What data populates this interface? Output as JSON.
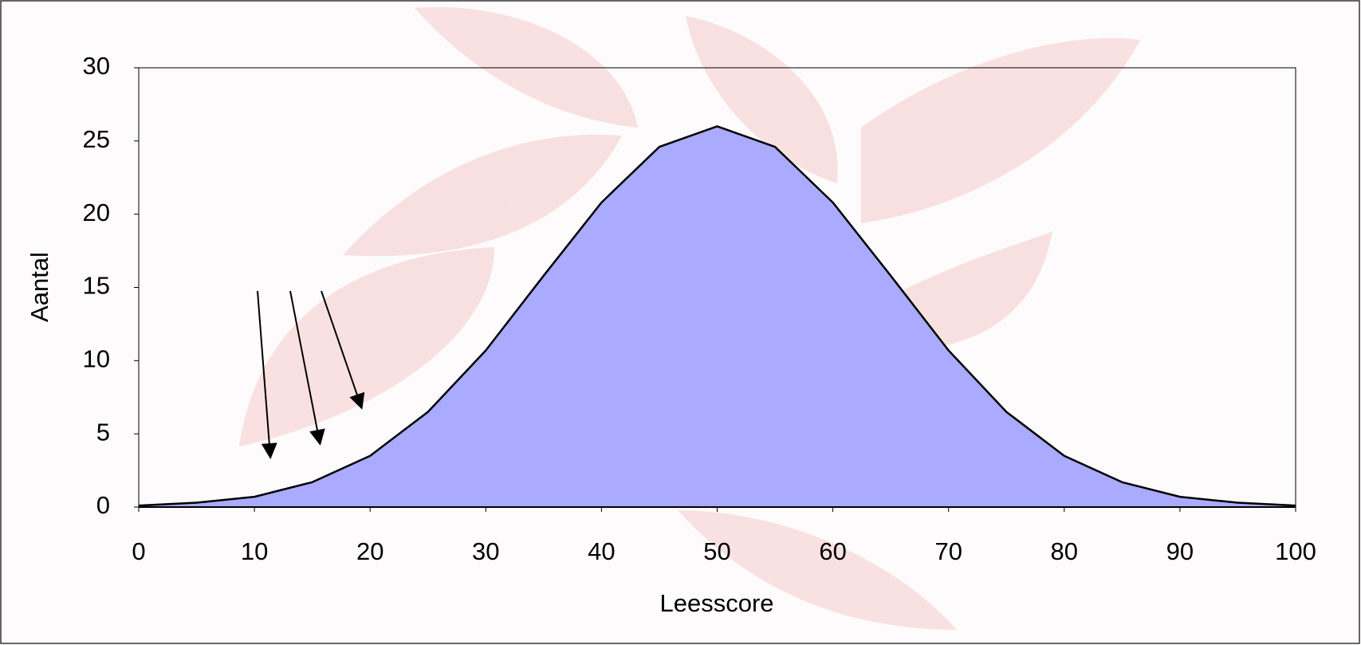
{
  "chart_data": {
    "type": "area",
    "x": [
      0,
      5,
      10,
      15,
      20,
      25,
      30,
      35,
      40,
      45,
      50,
      55,
      60,
      65,
      70,
      75,
      80,
      85,
      90,
      95,
      100
    ],
    "values": [
      0.1,
      0.3,
      0.7,
      1.7,
      3.5,
      6.5,
      10.7,
      15.8,
      20.8,
      24.6,
      26,
      24.6,
      20.8,
      15.8,
      10.7,
      6.5,
      3.5,
      1.7,
      0.7,
      0.3,
      0.1
    ],
    "color": "#aaaaff",
    "xlabel": "Leesscore",
    "ylabel": "Aantal",
    "xlim": [
      0,
      100
    ],
    "xticks": [
      0,
      10,
      20,
      30,
      40,
      50,
      60,
      70,
      80,
      90,
      100
    ],
    "ylim": [
      0,
      30
    ],
    "yticks": [
      0,
      5,
      10,
      15,
      20,
      25,
      30
    ]
  }
}
